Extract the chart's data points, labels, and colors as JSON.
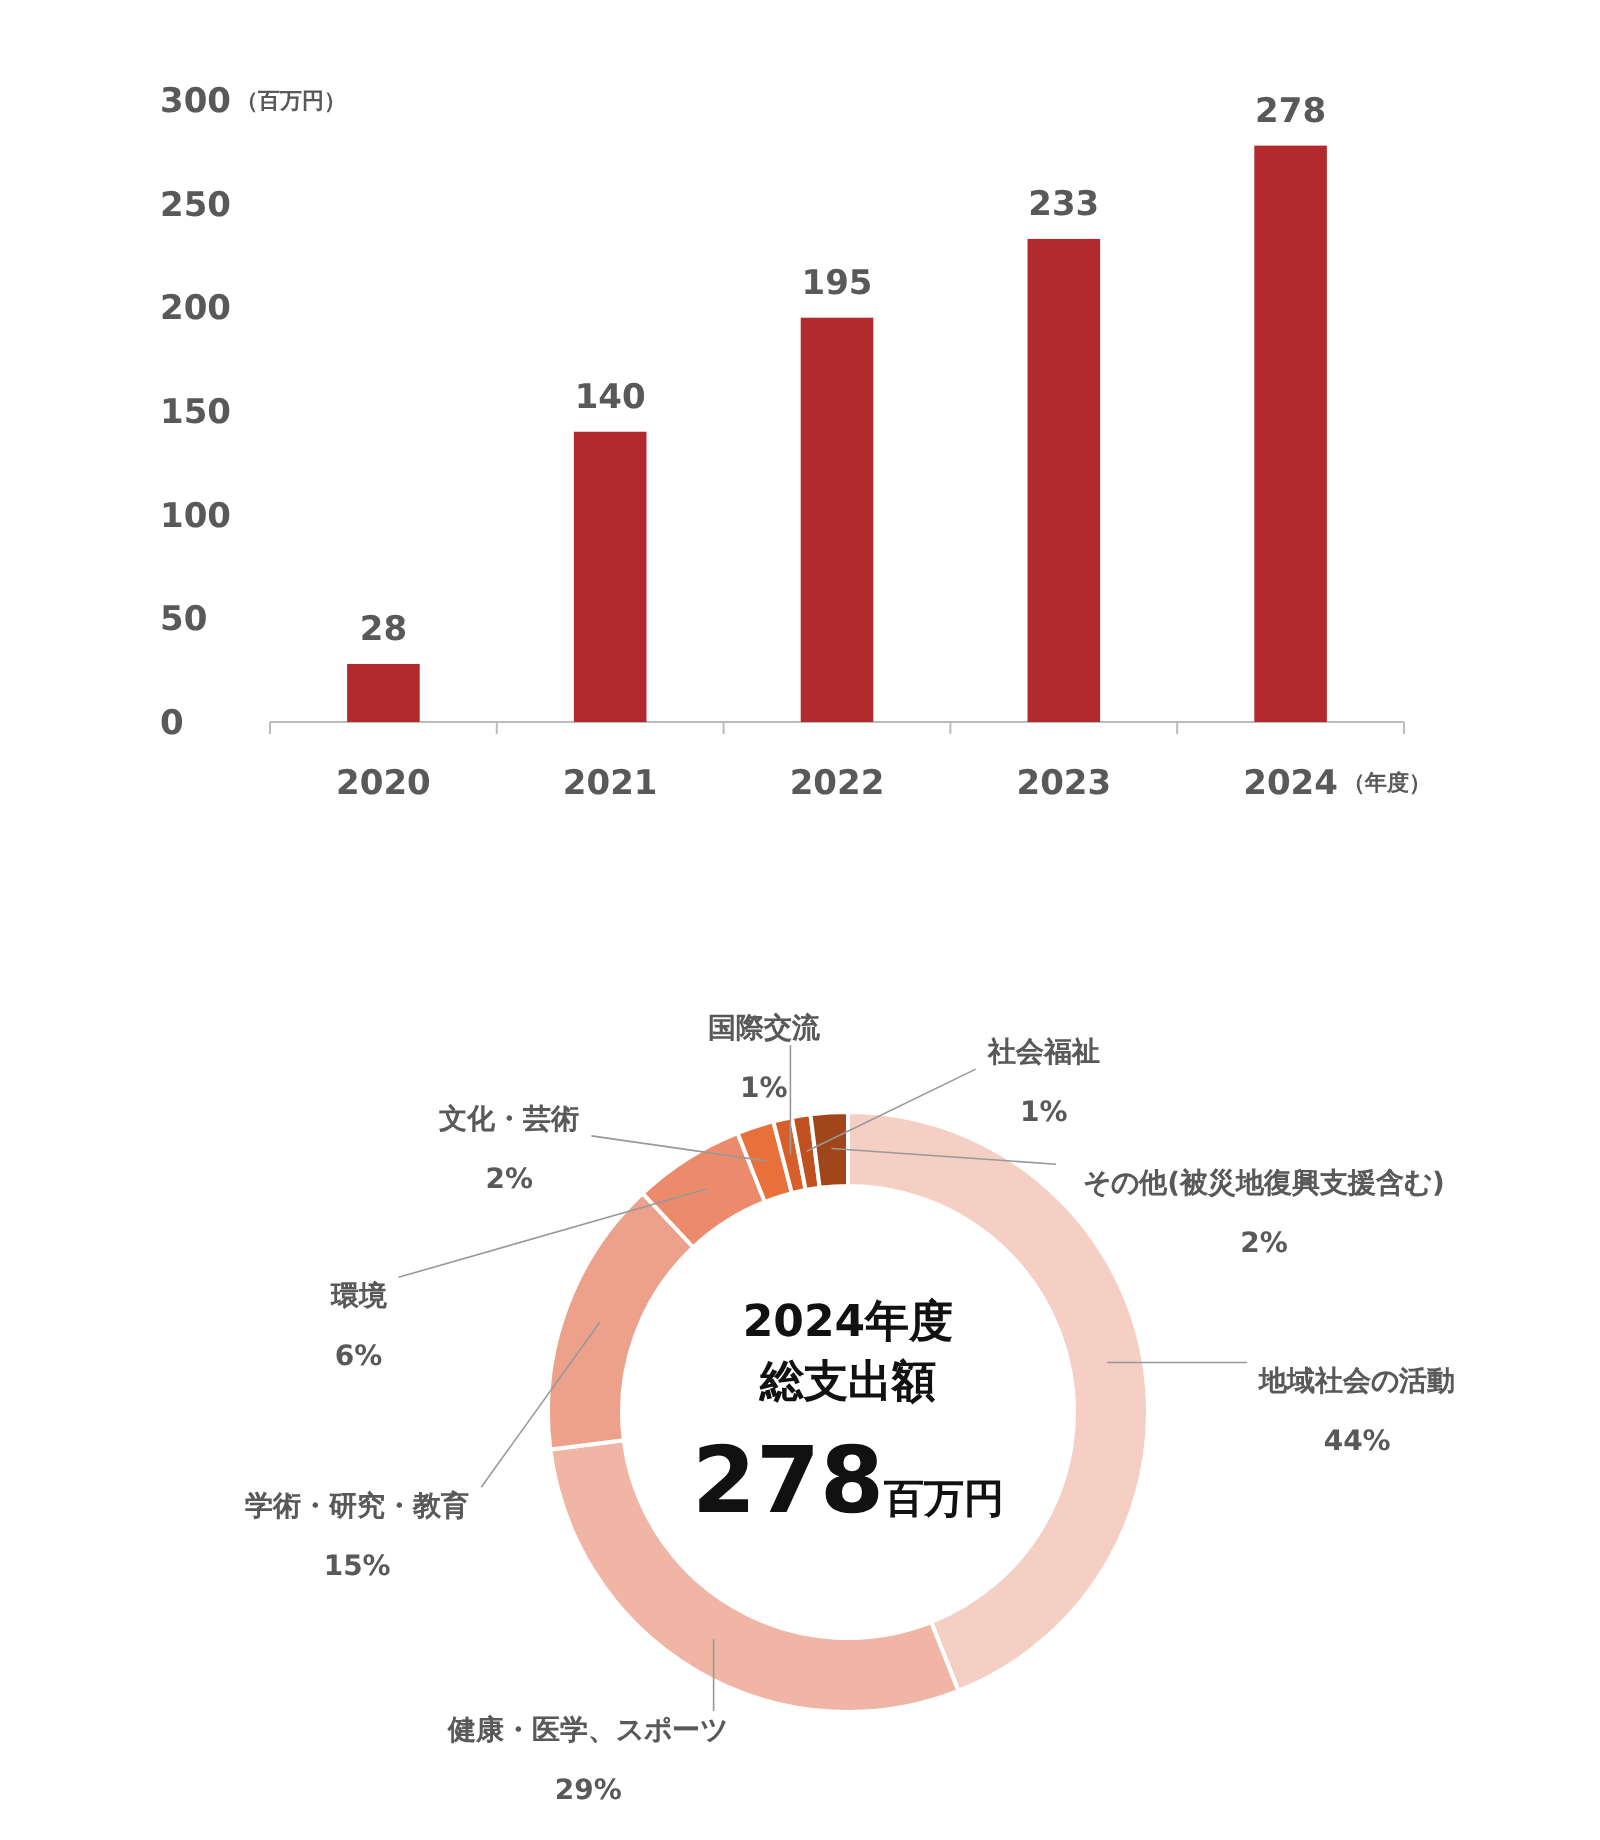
{
  "chart_data": [
    {
      "type": "bar",
      "categories": [
        "2020",
        "2021",
        "2022",
        "2023",
        "2024"
      ],
      "values": [
        28,
        140,
        195,
        233,
        278
      ],
      "color": "#b22a2e",
      "ylim": [
        0,
        300
      ],
      "yticks": [
        0,
        50,
        100,
        150,
        200,
        250,
        300
      ],
      "ylabel": "（百万円）",
      "xlabel": "（年度）",
      "data_labels": true,
      "grid": false
    },
    {
      "type": "donut",
      "categories": [
        "地域社会の活動",
        "健康・医学、スポーツ",
        "学術・研究・教育",
        "環境",
        "文化・芸術",
        "国際交流",
        "社会福祉",
        "その他(被災地復興支援含む)"
      ],
      "values": [
        44,
        29,
        15,
        6,
        2,
        1,
        1,
        2
      ],
      "colors": [
        "#f5cfc4",
        "#f0b5a5",
        "#eda08a",
        "#ec8b6c",
        "#e8703a",
        "#d95f2a",
        "#c0501f",
        "#a0461a"
      ],
      "value_labels": [
        "44%",
        "29%",
        "15%",
        "6%",
        "2%",
        "1%",
        "1%",
        "2%"
      ],
      "annotations": [
        "2024年度",
        "総支出額",
        "278",
        "百万円"
      ]
    }
  ]
}
